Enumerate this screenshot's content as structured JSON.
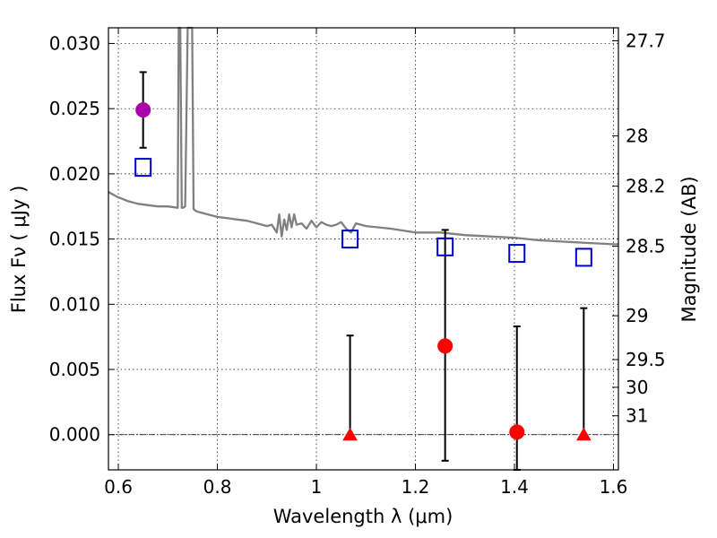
{
  "chart_data": {
    "type": "scatter",
    "title": "",
    "xlabel": "Wavelength  λ (μm)",
    "ylabel": "Flux  Fν  ( μJy )",
    "y2label": "Magnitude (AB)",
    "xlim": [
      0.58,
      1.61
    ],
    "ylim": [
      -0.0027,
      0.0312
    ],
    "grid": true,
    "x_ticks": [
      0.6,
      0.8,
      1.0,
      1.2,
      1.4,
      1.6
    ],
    "x_tick_labels": [
      "0.6",
      "0.8",
      "1",
      "1.2",
      "1.4",
      "1.6"
    ],
    "y_ticks": [
      0.0,
      0.005,
      0.01,
      0.015,
      0.02,
      0.025,
      0.03
    ],
    "y_tick_labels": [
      "0.000",
      "0.005",
      "0.010",
      "0.015",
      "0.020",
      "0.025",
      "0.030"
    ],
    "y2_ticks": [
      27.7,
      28,
      28.2,
      28.5,
      29,
      29.5,
      30,
      31
    ],
    "y2_tick_labels": [
      "27.7",
      "28",
      "28.2",
      "28.5",
      "29",
      "29.5",
      "30",
      "31"
    ],
    "zero_line": 0.0,
    "colors": {
      "model": "#808080",
      "model_squares": "#0000cc",
      "detection": "#ff0000",
      "optical_point": "#aa00aa",
      "errorbar": "#000000"
    },
    "series": [
      {
        "kind": "spectrum",
        "x": [
          0.58,
          0.6,
          0.62,
          0.64,
          0.66,
          0.68,
          0.7,
          0.72,
          0.722,
          0.725,
          0.728,
          0.731,
          0.735,
          0.74,
          0.743,
          0.746,
          0.749,
          0.752,
          0.755,
          0.76,
          0.78,
          0.8,
          0.82,
          0.84,
          0.86,
          0.88,
          0.9,
          0.91,
          0.92,
          0.925,
          0.93,
          0.935,
          0.94,
          0.945,
          0.95,
          0.955,
          0.96,
          0.97,
          0.98,
          0.99,
          1.0,
          1.01,
          1.02,
          1.03,
          1.04,
          1.05,
          1.06,
          1.07,
          1.08,
          1.1,
          1.15,
          1.2,
          1.25,
          1.3,
          1.35,
          1.4,
          1.45,
          1.5,
          1.55,
          1.6,
          1.61
        ],
        "y": [
          0.0186,
          0.0182,
          0.0179,
          0.0177,
          0.0176,
          0.0175,
          0.0175,
          0.0174,
          0.0312,
          0.0312,
          0.0174,
          0.0174,
          0.0175,
          0.0312,
          0.0312,
          0.0312,
          0.0312,
          0.0173,
          0.0172,
          0.0171,
          0.0169,
          0.0167,
          0.0166,
          0.0165,
          0.0164,
          0.0162,
          0.016,
          0.0161,
          0.0155,
          0.0169,
          0.0152,
          0.0165,
          0.0157,
          0.0169,
          0.0159,
          0.0169,
          0.0161,
          0.0162,
          0.0158,
          0.0164,
          0.0159,
          0.0163,
          0.0161,
          0.016,
          0.0161,
          0.0163,
          0.0158,
          0.0155,
          0.0162,
          0.016,
          0.0158,
          0.0155,
          0.0155,
          0.0153,
          0.0152,
          0.0151,
          0.0149,
          0.0148,
          0.0147,
          0.0146,
          0.0146
        ]
      },
      {
        "kind": "model_squares",
        "x": [
          0.65,
          1.068,
          1.26,
          1.405,
          1.54
        ],
        "y": [
          0.0205,
          0.015,
          0.0144,
          0.0139,
          0.0136
        ]
      },
      {
        "kind": "optical_point",
        "x": [
          0.65
        ],
        "y": [
          0.0249
        ],
        "yerr_low": [
          0.022
        ],
        "yerr_high": [
          0.0278
        ]
      },
      {
        "kind": "detections",
        "x": [
          1.26,
          1.405
        ],
        "y": [
          0.0068,
          0.0002
        ],
        "yerr_low": [
          -0.002,
          -0.0027
        ],
        "yerr_high": [
          0.0157,
          0.0083
        ]
      },
      {
        "kind": "upper_limits",
        "x": [
          1.068,
          1.54
        ],
        "y": [
          0.0,
          0.0
        ],
        "yerr_low": [
          0.0,
          0.0
        ],
        "yerr_high": [
          0.0076,
          0.0097
        ]
      }
    ]
  }
}
